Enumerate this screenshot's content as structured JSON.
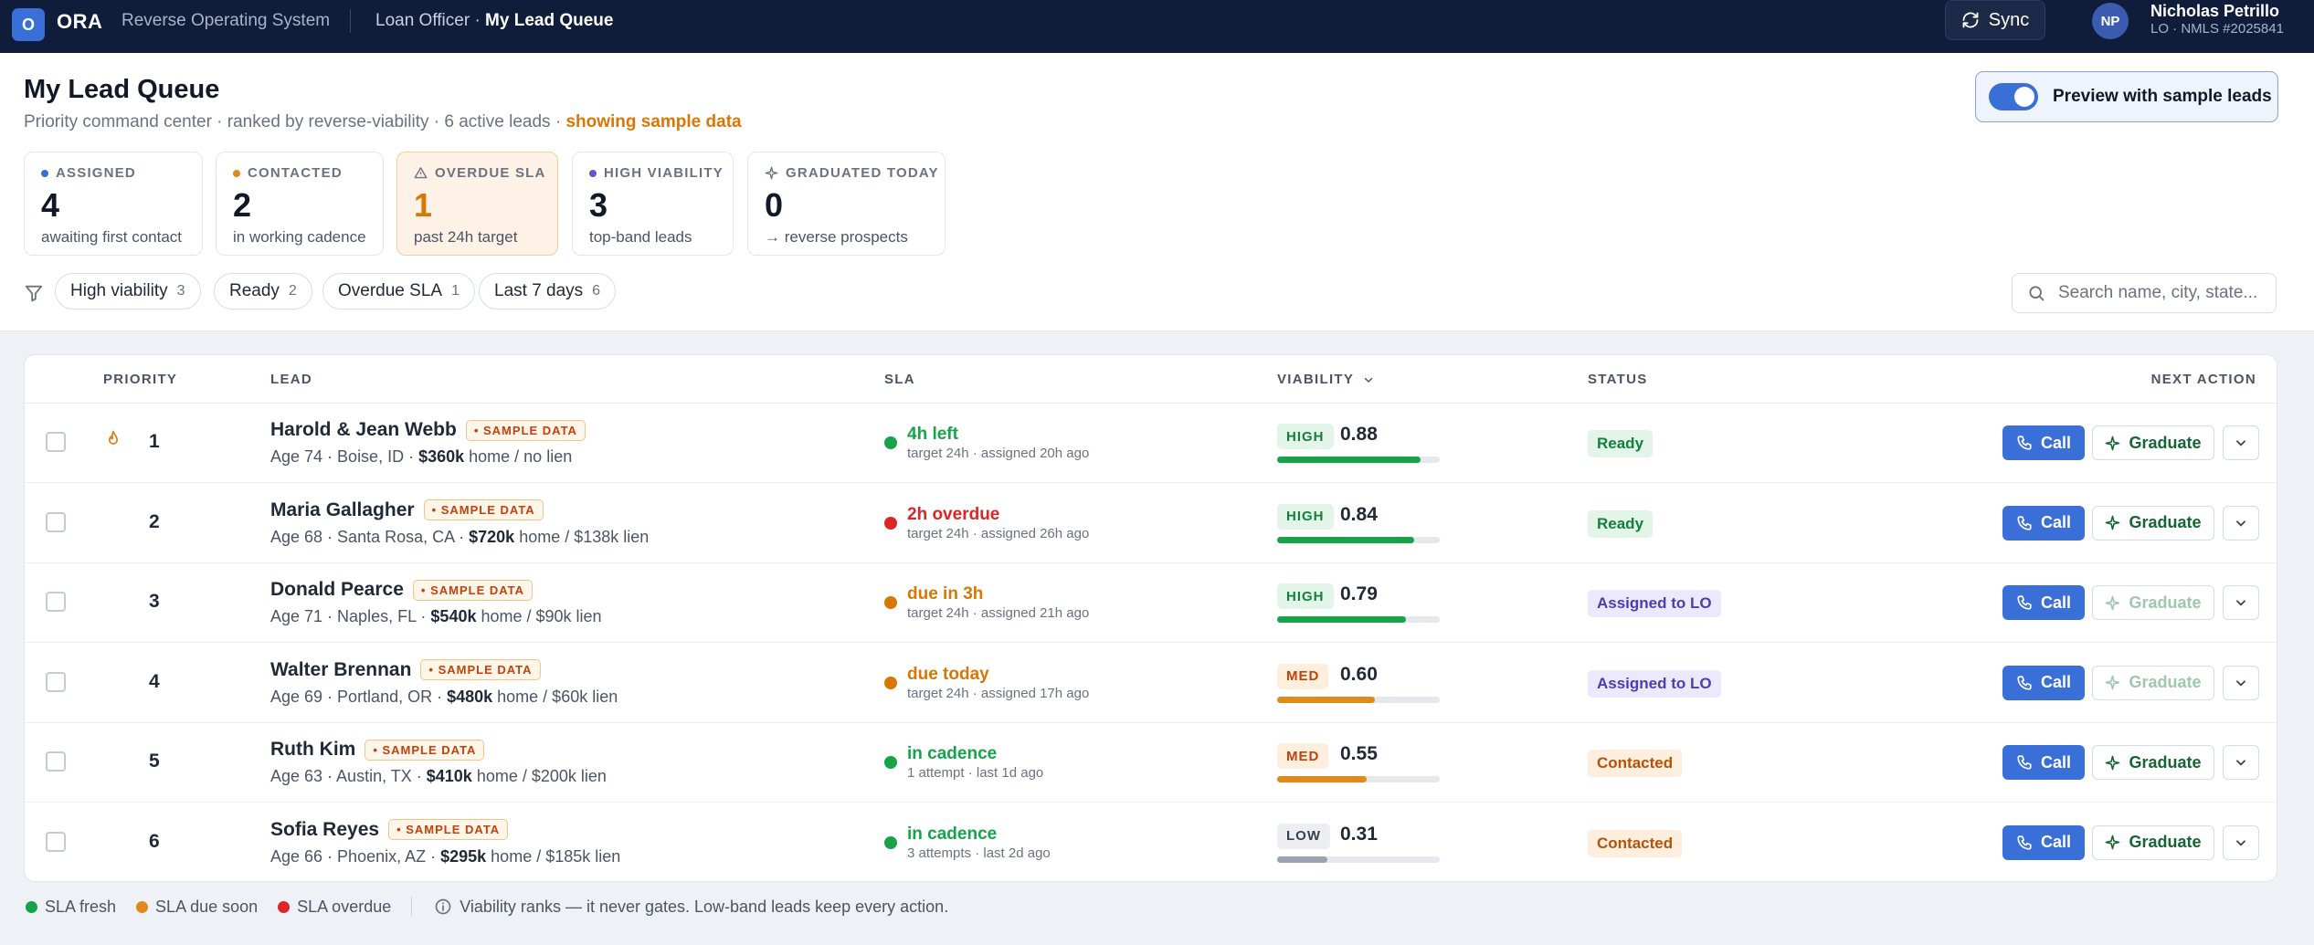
{
  "nav": {
    "logo_letter": "O",
    "brand": "ORA",
    "app_name": "Reverse Operating System",
    "crumb_role": "Loan Officer",
    "crumb_sep": "·",
    "crumb_page": "My Lead Queue",
    "sync_label": "Sync",
    "user_initials": "NP",
    "user_name": "Nicholas Petrillo",
    "user_sub": "LO · NMLS #2025841"
  },
  "header": {
    "title": "My Lead Queue",
    "subtitle": "Priority command center · ranked by reverse-viability · 6 active leads · ",
    "subtitle_accent": "showing sample data",
    "preview_label": "Preview with sample leads",
    "preview_on": true
  },
  "stats": [
    {
      "label": "ASSIGNED",
      "value": "4",
      "note": "awaiting first contact",
      "icon": "dot",
      "color": "#3b6fd8"
    },
    {
      "label": "CONTACTED",
      "value": "2",
      "note": "in working cadence",
      "icon": "dot",
      "color": "#e08a1c"
    },
    {
      "label": "OVERDUE SLA",
      "value": "1",
      "note": "past 24h target",
      "icon": "warning-icon",
      "color": "#6b7280"
    },
    {
      "label": "HIGH VIABILITY",
      "value": "3",
      "note": "top-band leads",
      "icon": "dot",
      "color": "#6d4fc7"
    },
    {
      "label": "GRADUATED TODAY",
      "value": "0",
      "note": "→ reverse prospects",
      "icon": "sparkle-icon",
      "color": "#6b7280"
    }
  ],
  "filters": [
    {
      "label": "High viability",
      "count": "3"
    },
    {
      "label": "Ready",
      "count": "2"
    },
    {
      "label": "Overdue SLA",
      "count": "1"
    },
    {
      "label": "Last 7 days",
      "count": "6"
    }
  ],
  "search": {
    "placeholder": "Search name, city, state..."
  },
  "table": {
    "columns": {
      "priority": "PRIORITY",
      "lead": "LEAD",
      "sla": "SLA",
      "viability": "VIABILITY",
      "status": "STATUS",
      "next_action": "NEXT ACTION"
    },
    "sample_badge": "• SAMPLE DATA",
    "call_label": "Call",
    "graduate_label": "Graduate",
    "rows": [
      {
        "priority": "1",
        "hot": true,
        "name": "Harold & Jean Webb",
        "age_loc": "Age 74 · Boise, ID · ",
        "home": "$360k",
        "lien": " home / no lien",
        "sla_main": "4h left",
        "sla_sub": "target 24h · assigned 20h ago",
        "sla_color": "#16a34a",
        "band": "HIGH",
        "score": "0.88",
        "score_val": 0.88,
        "status": "Ready",
        "status_kind": "ready",
        "graduate_enabled": true
      },
      {
        "priority": "2",
        "hot": false,
        "name": "Maria Gallagher",
        "age_loc": "Age 68 · Santa Rosa, CA · ",
        "home": "$720k",
        "lien": " home / $138k lien",
        "sla_main": "2h overdue",
        "sla_sub": "target 24h · assigned 26h ago",
        "sla_color": "#dc2626",
        "band": "HIGH",
        "score": "0.84",
        "score_val": 0.84,
        "status": "Ready",
        "status_kind": "ready",
        "graduate_enabled": true
      },
      {
        "priority": "3",
        "hot": false,
        "name": "Donald Pearce",
        "age_loc": "Age 71 · Naples, FL · ",
        "home": "$540k",
        "lien": " home / $90k lien",
        "sla_main": "due in 3h",
        "sla_sub": "target 24h · assigned 21h ago",
        "sla_color": "#d97706",
        "band": "HIGH",
        "score": "0.79",
        "score_val": 0.79,
        "status": "Assigned to LO",
        "status_kind": "assigned",
        "graduate_enabled": false
      },
      {
        "priority": "4",
        "hot": false,
        "name": "Walter Brennan",
        "age_loc": "Age 69 · Portland, OR · ",
        "home": "$480k",
        "lien": " home / $60k lien",
        "sla_main": "due today",
        "sla_sub": "target 24h · assigned 17h ago",
        "sla_color": "#d97706",
        "band": "MED",
        "score": "0.60",
        "score_val": 0.6,
        "status": "Assigned to LO",
        "status_kind": "assigned",
        "graduate_enabled": false
      },
      {
        "priority": "5",
        "hot": false,
        "name": "Ruth Kim",
        "age_loc": "Age 63 · Austin, TX · ",
        "home": "$410k",
        "lien": " home / $200k lien",
        "sla_main": "in cadence",
        "sla_sub": "1 attempt · last 1d ago",
        "sla_color": "#16a34a",
        "band": "MED",
        "score": "0.55",
        "score_val": 0.55,
        "status": "Contacted",
        "status_kind": "contacted",
        "graduate_enabled": true
      },
      {
        "priority": "6",
        "hot": false,
        "name": "Sofia Reyes",
        "age_loc": "Age 66 · Phoenix, AZ · ",
        "home": "$295k",
        "lien": " home / $185k lien",
        "sla_main": "in cadence",
        "sla_sub": "3 attempts · last 2d ago",
        "sla_color": "#16a34a",
        "band": "LOW",
        "score": "0.31",
        "score_val": 0.31,
        "status": "Contacted",
        "status_kind": "contacted",
        "graduate_enabled": true
      }
    ]
  },
  "legend": {
    "fresh": "SLA fresh",
    "soon": "SLA due soon",
    "overdue": "SLA overdue",
    "note": "Viability ranks — it never gates. Low-band leads keep every action.",
    "fresh_color": "#16a34a",
    "soon_color": "#e08a1c",
    "overdue_color": "#dc2626"
  },
  "colors": {
    "nav_bg": "#0f1d3a",
    "accent": "#3b6fd8",
    "band_high_bg": "#e3f4e8",
    "band_high_fg": "#15803d",
    "band_high_bar": "#16a34a",
    "band_med_bg": "#fdeedd",
    "band_med_fg": "#c2410c",
    "band_med_bar": "#e08a1c",
    "band_low_bg": "#eceef2",
    "band_low_fg": "#374151",
    "band_low_bar": "#9aa3b1",
    "status_ready_bg": "#e3f4e8",
    "status_ready_fg": "#15803d",
    "status_assigned_bg": "#ebe9fb",
    "status_assigned_fg": "#4c3db3",
    "status_contacted_bg": "#fdeedd",
    "status_contacted_fg": "#b45309"
  }
}
